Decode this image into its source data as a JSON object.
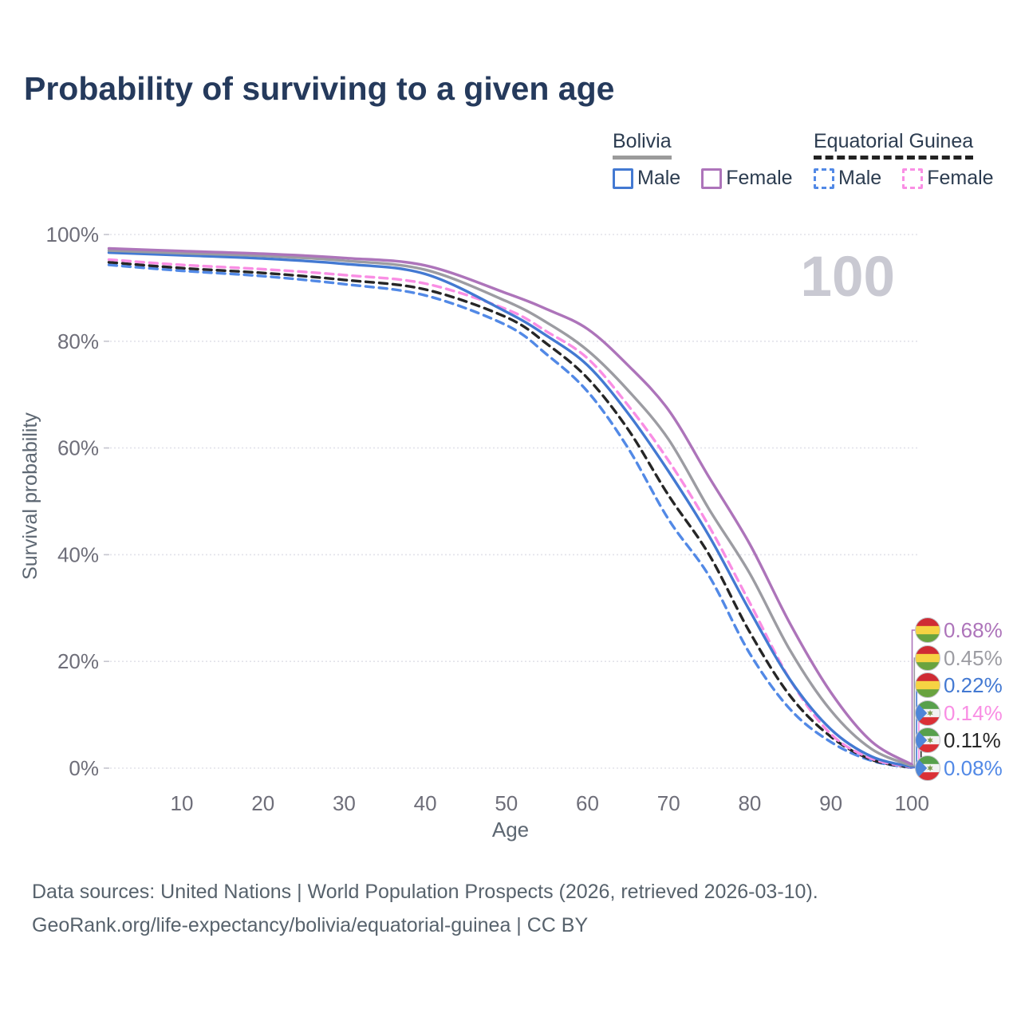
{
  "title": "Probability of surviving to a given age",
  "watermark": "100",
  "legend": {
    "groups": [
      {
        "name": "Bolivia",
        "line_style": "solid",
        "underline_color": "#9b9b9b",
        "items": [
          {
            "label": "Male",
            "color": "#4379d2",
            "dashed": false
          },
          {
            "label": "Female",
            "color": "#ad74ba",
            "dashed": false
          }
        ]
      },
      {
        "name": "Equatorial Guinea",
        "line_style": "dashed",
        "underline_color": "#222222",
        "items": [
          {
            "label": "Male",
            "color": "#5289e6",
            "dashed": true
          },
          {
            "label": "Female",
            "color": "#f98ee4",
            "dashed": true
          }
        ]
      }
    ]
  },
  "chart_data": {
    "type": "line",
    "title": "Probability of surviving to a given age",
    "xlabel": "Age",
    "ylabel": "Survival probability",
    "xlim": [
      1,
      100
    ],
    "ylim": [
      0,
      100
    ],
    "x_ticks": [
      10,
      20,
      30,
      40,
      50,
      60,
      70,
      80,
      90,
      100
    ],
    "y_ticks": [
      0,
      20,
      40,
      60,
      80,
      100
    ],
    "y_tick_suffix": "%",
    "grid": "horizontal",
    "legend_position": "top-right",
    "ages": [
      1,
      10,
      20,
      30,
      40,
      50,
      55,
      60,
      65,
      70,
      75,
      80,
      85,
      90,
      95,
      100
    ],
    "series": [
      {
        "name": "Bolivia Female",
        "country": "Bolivia",
        "sex": "Female",
        "flag": "bo",
        "color": "#ad74ba",
        "dashed": false,
        "end_label": "0.68%",
        "values": [
          97.4,
          96.9,
          96.4,
          95.6,
          94.2,
          89.0,
          86.0,
          82.3,
          75.5,
          67.1,
          54.5,
          42.0,
          27.0,
          14.2,
          5.0,
          0.68
        ]
      },
      {
        "name": "Bolivia Both sexes",
        "country": "Bolivia",
        "sex": "Both sexes",
        "flag": "bo",
        "color": "#9c9ca2",
        "dashed": false,
        "end_label": "0.45%",
        "values": [
          97.0,
          96.5,
          96.0,
          95.1,
          93.4,
          87.5,
          83.5,
          78.3,
          70.8,
          61.6,
          48.5,
          36.5,
          22.0,
          10.8,
          3.6,
          0.45
        ]
      },
      {
        "name": "Bolivia Male",
        "country": "Bolivia",
        "sex": "Male",
        "flag": "bo",
        "color": "#4379d2",
        "dashed": false,
        "end_label": "0.22%",
        "values": [
          96.6,
          96.1,
          95.5,
          94.5,
          92.6,
          85.5,
          81.0,
          75.5,
          66.5,
          55.6,
          43.5,
          29.5,
          16.5,
          7.3,
          2.2,
          0.22
        ]
      },
      {
        "name": "Equatorial Guinea Female",
        "country": "Equatorial Guinea",
        "sex": "Female",
        "flag": "gq",
        "color": "#f98ee4",
        "dashed": true,
        "end_label": "0.14%",
        "values": [
          95.3,
          94.3,
          93.5,
          92.4,
          90.8,
          86.0,
          81.8,
          76.8,
          68.0,
          57.6,
          45.3,
          31.0,
          16.5,
          6.4,
          1.8,
          0.14
        ]
      },
      {
        "name": "Equatorial Guinea Both sexes",
        "country": "Equatorial Guinea",
        "sex": "Both sexes",
        "flag": "gq",
        "color": "#262626",
        "dashed": true,
        "end_label": "0.11%",
        "values": [
          94.8,
          93.7,
          92.8,
          91.5,
          89.7,
          84.5,
          79.5,
          73.1,
          63.5,
          51.1,
          40.0,
          25.5,
          13.5,
          5.9,
          1.6,
          0.11
        ]
      },
      {
        "name": "Equatorial Guinea Male",
        "country": "Equatorial Guinea",
        "sex": "Male",
        "flag": "gq",
        "color": "#5289e6",
        "dashed": true,
        "end_label": "0.08%",
        "values": [
          94.3,
          93.2,
          92.2,
          90.7,
          88.6,
          83.0,
          77.5,
          70.6,
          60.0,
          46.6,
          36.0,
          21.5,
          11.0,
          4.9,
          1.4,
          0.08
        ]
      }
    ],
    "flag_colors": {
      "bo": {
        "stripes": [
          "#cf2b34",
          "#f6d343",
          "#69a33f"
        ]
      },
      "gq": {
        "stripes": [
          "#57a04c",
          "#f2f2f2",
          "#da3036"
        ],
        "triangle": "#4f86d8",
        "star": "#7d9b50"
      }
    }
  },
  "footer": {
    "line1": "Data sources: United Nations | World Population Prospects (2026, retrieved 2026-03-10).",
    "line2": "GeoRank.org/life-expectancy/bolivia/equatorial-guinea | CC BY"
  }
}
